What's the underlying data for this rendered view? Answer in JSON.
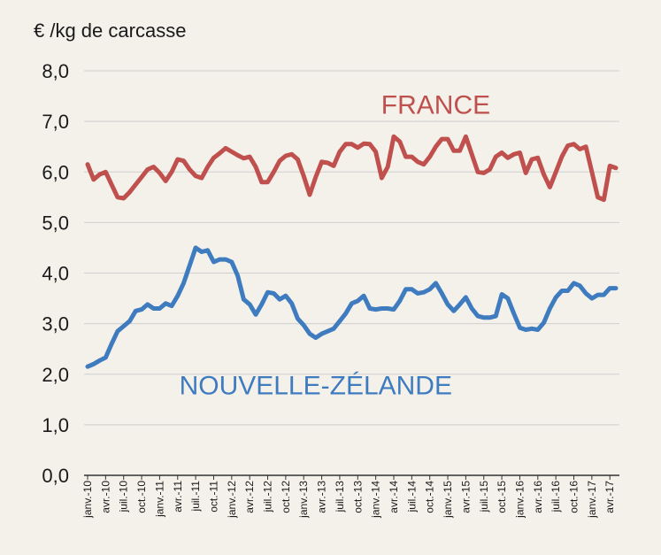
{
  "chart_data": {
    "type": "line",
    "title": "",
    "ylabel": "€ /kg de carcasse",
    "ylim": [
      0,
      8
    ],
    "yticks": [
      "0,0",
      "1,0",
      "2,0",
      "3,0",
      "4,0",
      "5,0",
      "6,0",
      "7,0",
      "8,0"
    ],
    "grid": "horizontal",
    "x": [
      "janv.-10",
      "févr.-10",
      "mars-10",
      "avr.-10",
      "mai-10",
      "juin-10",
      "juil.-10",
      "août-10",
      "sept.-10",
      "oct.-10",
      "nov.-10",
      "déc.-10",
      "janv.-11",
      "févr.-11",
      "mars-11",
      "avr.-11",
      "mai-11",
      "juin-11",
      "juil.-11",
      "août-11",
      "sept.-11",
      "oct.-11",
      "nov.-11",
      "déc.-11",
      "janv.-12",
      "févr.-12",
      "mars-12",
      "avr.-12",
      "mai-12",
      "juin-12",
      "juil.-12",
      "août-12",
      "sept.-12",
      "oct.-12",
      "nov.-12",
      "déc.-12",
      "janv.-13",
      "févr.-13",
      "mars-13",
      "avr.-13",
      "mai-13",
      "juin-13",
      "juil.-13",
      "août-13",
      "sept.-13",
      "oct.-13",
      "nov.-13",
      "déc.-13",
      "janv.-14",
      "févr.-14",
      "mars-14",
      "avr.-14",
      "mai-14",
      "juin-14",
      "juil.-14",
      "août-14",
      "sept.-14",
      "oct.-14",
      "nov.-14",
      "déc.-14",
      "janv.-15",
      "févr.-15",
      "mars-15",
      "avr.-15",
      "mai-15",
      "juin-15",
      "juil.-15",
      "août-15",
      "sept.-15",
      "oct.-15",
      "nov.-15",
      "déc.-15",
      "janv.-16",
      "févr.-16",
      "mars-16",
      "avr.-16",
      "mai-16",
      "juin-16",
      "juil.-16",
      "août-16",
      "sept.-16",
      "oct.-16",
      "nov.-16",
      "déc.-16",
      "janv.-17",
      "févr.-17",
      "mars-17",
      "avr.-17",
      "mai-17"
    ],
    "xtick_labels": [
      "janv.-10",
      "avr.-10",
      "juil.-10",
      "oct.-10",
      "janv.-11",
      "avr.-11",
      "juil.-11",
      "oct.-11",
      "janv.-12",
      "avr.-12",
      "juil.-12",
      "oct.-12",
      "janv.-13",
      "avr.-13",
      "juil.-13",
      "oct.-13",
      "janv.-14",
      "avr.-14",
      "juil.-14",
      "oct.-14",
      "janv.-15",
      "avr.-15",
      "juil.-15",
      "oct.-15",
      "janv.-16",
      "avr.-16",
      "juil.-16",
      "oct.-16",
      "janv.-17",
      "avr.-17"
    ],
    "series": [
      {
        "name": "FRANCE",
        "color": "#c0504d",
        "values": [
          6.15,
          5.85,
          5.95,
          6.0,
          5.75,
          5.5,
          5.48,
          5.6,
          5.75,
          5.9,
          6.05,
          6.1,
          5.98,
          5.82,
          6.0,
          6.25,
          6.22,
          6.05,
          5.92,
          5.88,
          6.1,
          6.28,
          6.37,
          6.47,
          6.4,
          6.33,
          6.27,
          6.3,
          6.1,
          5.8,
          5.8,
          6.0,
          6.22,
          6.32,
          6.35,
          6.25,
          5.92,
          5.55,
          5.9,
          6.2,
          6.18,
          6.12,
          6.4,
          6.55,
          6.55,
          6.48,
          6.56,
          6.55,
          6.4,
          5.88,
          6.1,
          6.7,
          6.6,
          6.3,
          6.3,
          6.2,
          6.15,
          6.3,
          6.5,
          6.65,
          6.65,
          6.42,
          6.42,
          6.7,
          6.35,
          6.0,
          5.98,
          6.05,
          6.3,
          6.38,
          6.28,
          6.35,
          6.38,
          5.98,
          6.25,
          6.28,
          5.95,
          5.7,
          6.0,
          6.3,
          6.52,
          6.55,
          6.45,
          6.5,
          6.0,
          5.5,
          5.45,
          6.12,
          6.08
        ]
      },
      {
        "name": "NOUVELLE-ZÉLANDE",
        "color": "#3f7bbf",
        "values": [
          2.15,
          2.2,
          2.27,
          2.33,
          2.6,
          2.85,
          2.95,
          3.05,
          3.25,
          3.28,
          3.38,
          3.3,
          3.3,
          3.4,
          3.35,
          3.55,
          3.8,
          4.15,
          4.5,
          4.42,
          4.45,
          4.22,
          4.27,
          4.27,
          4.22,
          3.95,
          3.48,
          3.38,
          3.18,
          3.38,
          3.62,
          3.6,
          3.48,
          3.55,
          3.4,
          3.1,
          2.97,
          2.8,
          2.72,
          2.8,
          2.85,
          2.9,
          3.05,
          3.2,
          3.4,
          3.45,
          3.55,
          3.3,
          3.28,
          3.3,
          3.3,
          3.28,
          3.45,
          3.68,
          3.68,
          3.6,
          3.62,
          3.68,
          3.8,
          3.6,
          3.38,
          3.25,
          3.38,
          3.52,
          3.3,
          3.15,
          3.12,
          3.12,
          3.15,
          3.58,
          3.5,
          3.2,
          2.92,
          2.88,
          2.9,
          2.88,
          3.02,
          3.3,
          3.52,
          3.65,
          3.65,
          3.8,
          3.75,
          3.6,
          3.5,
          3.57,
          3.57,
          3.7,
          3.7
        ]
      }
    ]
  }
}
